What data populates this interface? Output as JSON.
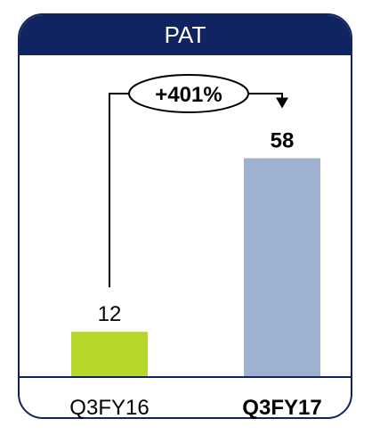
{
  "chart_data": {
    "type": "bar",
    "title": "PAT",
    "categories": [
      "Q3FY16",
      "Q3FY17"
    ],
    "values": [
      12,
      58
    ],
    "value_labels": [
      "12",
      "58"
    ],
    "bar_colors": [
      "#b5d72a",
      "#9fb1d0"
    ],
    "category_bold": [
      false,
      true
    ],
    "growth_label": "+401%",
    "ylim": [
      0,
      60
    ],
    "grid": false
  }
}
